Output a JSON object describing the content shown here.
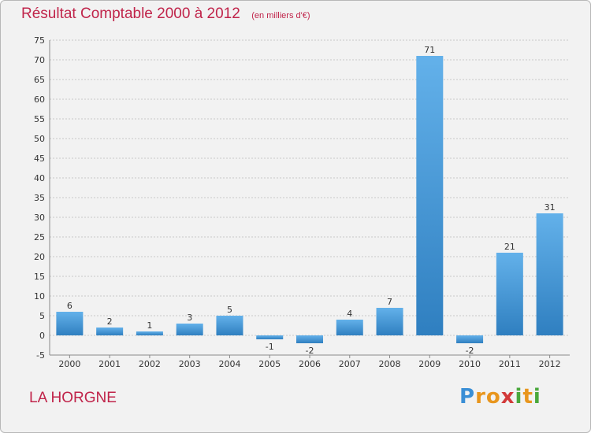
{
  "chart_data": {
    "type": "bar",
    "title": "Résultat Comptable 2000 à 2012",
    "unit_label": "(en milliers d'€)",
    "categories": [
      "2000",
      "2001",
      "2002",
      "2003",
      "2004",
      "2005",
      "2006",
      "2007",
      "2008",
      "2009",
      "2010",
      "2011",
      "2012"
    ],
    "values": [
      6,
      2,
      1,
      3,
      5,
      -1,
      -2,
      4,
      7,
      71,
      -2,
      21,
      31
    ],
    "ylim": [
      -5,
      75
    ],
    "yticks": [
      -5,
      0,
      5,
      10,
      15,
      20,
      25,
      30,
      35,
      40,
      45,
      50,
      55,
      60,
      65,
      70,
      75
    ],
    "grid": true,
    "xlabel": "",
    "ylabel": ""
  },
  "commune_name": "LA HORGNE",
  "logo": {
    "letters": [
      "P",
      "r",
      "o",
      "x",
      "i",
      "t",
      "i"
    ],
    "colors": [
      "#3a8fd6",
      "#e8961e",
      "#e8961e",
      "#d23a3a",
      "#4aa83c",
      "#e8961e",
      "#4aa83c"
    ]
  },
  "colors": {
    "title": "#c0244a",
    "bar_light": "#63b1ea",
    "bar_dark": "#2f7fc0",
    "grid": "#c8c8c8",
    "axis": "#8a8a8a"
  }
}
